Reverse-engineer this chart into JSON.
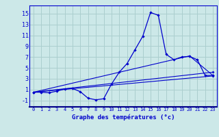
{
  "xlabel": "Graphe des températures (°c)",
  "bg_color": "#cce8e8",
  "grid_color": "#aacece",
  "line_color": "#0000cc",
  "x_ticks": [
    0,
    1,
    2,
    3,
    4,
    5,
    6,
    7,
    8,
    9,
    10,
    11,
    12,
    13,
    14,
    15,
    16,
    17,
    18,
    19,
    20,
    21,
    22,
    23
  ],
  "y_ticks": [
    -1,
    1,
    3,
    5,
    7,
    9,
    11,
    13,
    15
  ],
  "ylim": [
    -2.2,
    16.5
  ],
  "xlim": [
    -0.5,
    23.5
  ],
  "series": [
    {
      "x": [
        0,
        1,
        2,
        3,
        4,
        5,
        6,
        7,
        8,
        9,
        10,
        11,
        12,
        13,
        14,
        15,
        16,
        17,
        18,
        19,
        20,
        21,
        22,
        23
      ],
      "y": [
        0.5,
        0.5,
        0.4,
        0.7,
        1.1,
        1.2,
        0.6,
        -0.6,
        -0.9,
        -0.7,
        2.0,
        4.2,
        5.8,
        8.3,
        10.8,
        15.2,
        14.7,
        7.5,
        6.5,
        7.0,
        7.1,
        6.5,
        3.6,
        3.6
      ]
    },
    {
      "x": [
        0,
        23
      ],
      "y": [
        0.5,
        3.5
      ]
    },
    {
      "x": [
        0,
        23
      ],
      "y": [
        0.5,
        4.2
      ]
    },
    {
      "x": [
        0,
        20,
        23
      ],
      "y": [
        0.5,
        7.2,
        3.6
      ]
    }
  ]
}
